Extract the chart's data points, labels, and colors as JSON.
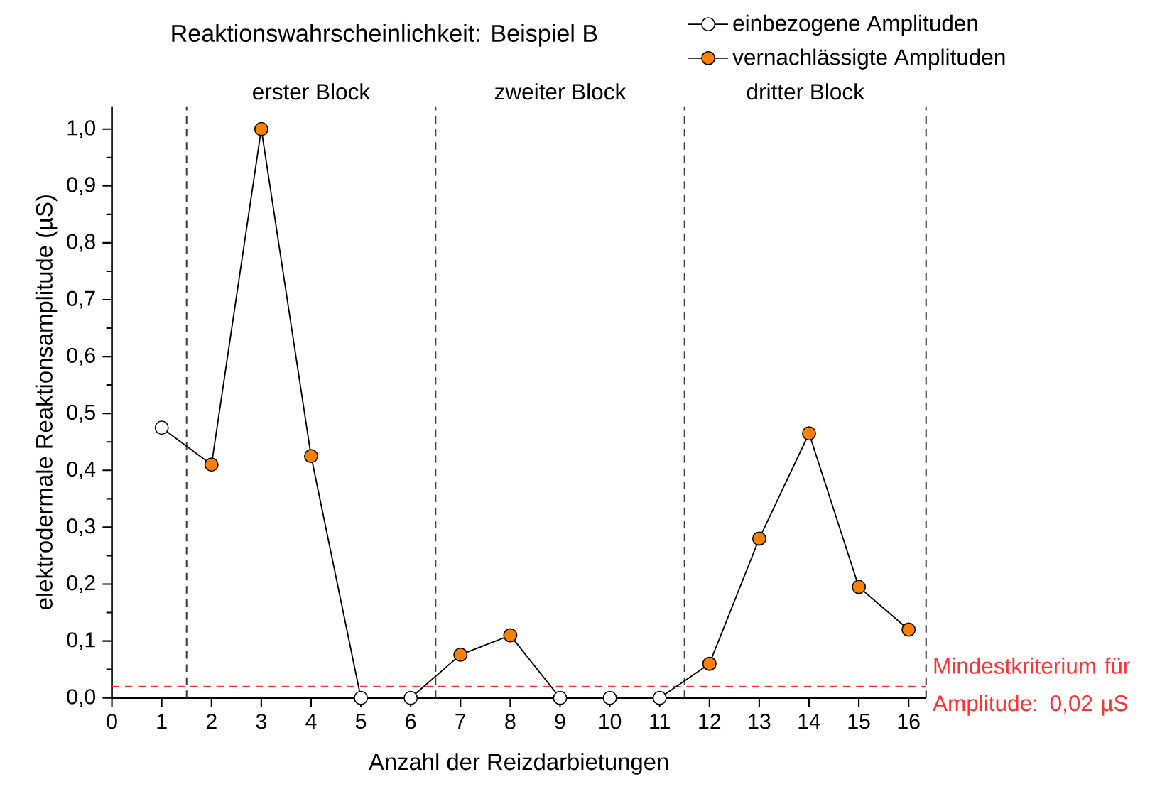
{
  "chart_data": {
    "type": "line",
    "title": "Reaktionswahrscheinlichkeit: Beispiel B",
    "xlabel": "Anzahl der Reizdarbietungen",
    "ylabel": "elektrodermale Reaktionsamplitude (µS)",
    "xlim": [
      0,
      16.35
    ],
    "ylim": [
      0,
      1.04
    ],
    "xticks": [
      0,
      1,
      2,
      3,
      4,
      5,
      6,
      7,
      8,
      9,
      10,
      11,
      12,
      13,
      14,
      15,
      16
    ],
    "yticks": [
      {
        "value": 0,
        "label": "0,0"
      },
      {
        "value": 0.1,
        "label": "0,1"
      },
      {
        "value": 0.2,
        "label": "0,2"
      },
      {
        "value": 0.3,
        "label": "0,3"
      },
      {
        "value": 0.4,
        "label": "0,4"
      },
      {
        "value": 0.5,
        "label": "0,5"
      },
      {
        "value": 0.6,
        "label": "0,6"
      },
      {
        "value": 0.7,
        "label": "0,7"
      },
      {
        "value": 0.8,
        "label": "0,8"
      },
      {
        "value": 0.9,
        "label": "0,9"
      },
      {
        "value": 1.0,
        "label": "1,0"
      }
    ],
    "grid": false,
    "legend": "top right",
    "series": [
      {
        "color": "#000000",
        "marker": "none",
        "x": [
          1,
          2,
          3,
          4,
          5,
          6,
          7,
          8,
          9,
          10,
          11,
          12,
          13,
          14,
          15,
          16
        ],
        "values": [
          0.475,
          0.41,
          1.0,
          0.425,
          0,
          0,
          0.076,
          0.11,
          0,
          0,
          0,
          0.06,
          0.28,
          0.465,
          0.195,
          0.12
        ]
      },
      {
        "type": "scatter",
        "name": "einbezogene Amplituden",
        "color": "#ffffff",
        "marker": "circle",
        "x": [
          1,
          5,
          6,
          9,
          10,
          11
        ],
        "values": [
          0.475,
          0,
          0,
          0,
          0,
          0
        ]
      },
      {
        "type": "scatter",
        "name": "vernachlässigte Amplituden",
        "color": "#ff7f00",
        "marker": "circle",
        "x": [
          2,
          3,
          4,
          7,
          8,
          12,
          13,
          14,
          15,
          16
        ],
        "values": [
          0.41,
          1.0,
          0.425,
          0.076,
          0.11,
          0.06,
          0.28,
          0.465,
          0.195,
          0.12
        ]
      }
    ],
    "ref_lines": [
      {
        "axis": "x",
        "value": 1.5,
        "color": "#404040",
        "line_style": "dashed"
      },
      {
        "axis": "x",
        "value": 6.5,
        "color": "#404040",
        "line_style": "dashed"
      },
      {
        "axis": "x",
        "value": 11.5,
        "color": "#404040",
        "line_style": "dashed"
      },
      {
        "axis": "x",
        "value": 16.35,
        "color": "#404040",
        "line_style": "dashed"
      },
      {
        "axis": "y",
        "value": 0.02,
        "color": "#ff3333",
        "line_style": "dashed",
        "label": "Mindestkriterium für Amplitude: 0,02 µS"
      }
    ],
    "annotations": [
      "erster Block",
      "zweiter Block",
      "dritter Block"
    ]
  }
}
